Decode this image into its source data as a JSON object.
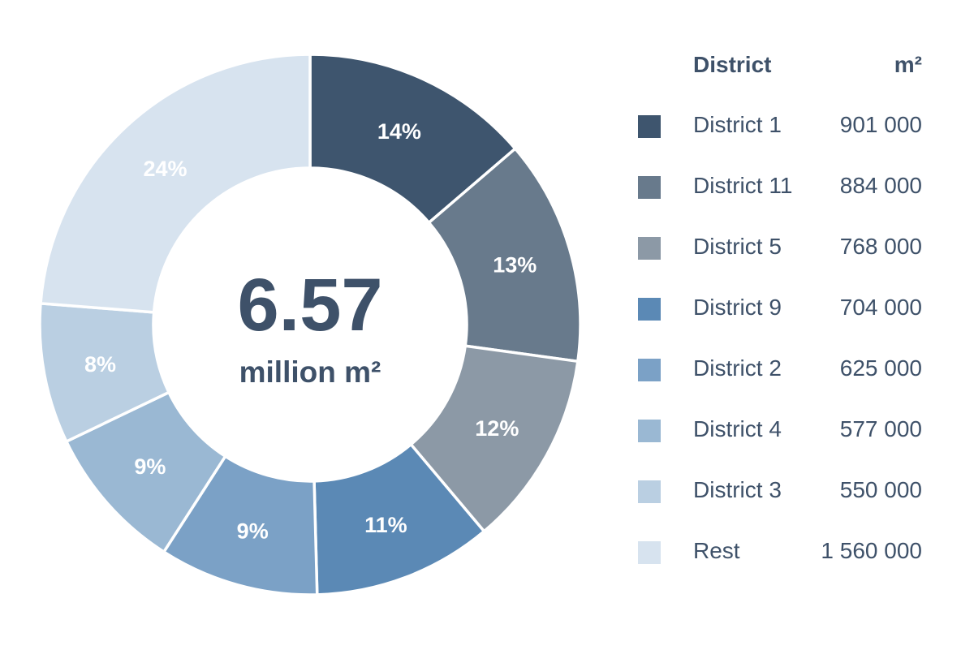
{
  "chart_data": {
    "type": "pie",
    "donut": true,
    "center": {
      "value": "6.57",
      "unit": "million m²"
    },
    "legend": {
      "header_name": "District",
      "header_unit": "m²",
      "placement": "right"
    },
    "slices": [
      {
        "name": "District 1",
        "value_label": "901 000",
        "value": 901000,
        "percent_label": "14%",
        "color": "#3e556e"
      },
      {
        "name": "District 11",
        "value_label": "884 000",
        "value": 884000,
        "percent_label": "13%",
        "color": "#687a8c"
      },
      {
        "name": "District 5",
        "value_label": "768 000",
        "value": 768000,
        "percent_label": "12%",
        "color": "#8c99a6"
      },
      {
        "name": "District 9",
        "value_label": "704 000",
        "value": 704000,
        "percent_label": "11%",
        "color": "#5b89b5"
      },
      {
        "name": "District 2",
        "value_label": "625 000",
        "value": 625000,
        "percent_label": "9%",
        "color": "#7ba1c6"
      },
      {
        "name": "District 4",
        "value_label": "577 000",
        "value": 577000,
        "percent_label": "9%",
        "color": "#9ab8d3"
      },
      {
        "name": "District 3",
        "value_label": "550 000",
        "value": 550000,
        "percent_label": "8%",
        "color": "#bacfe2"
      },
      {
        "name": "Rest",
        "value_label": "1 560 000",
        "value": 1560000,
        "percent_label": "24%",
        "color": "#d7e3ef"
      }
    ]
  }
}
